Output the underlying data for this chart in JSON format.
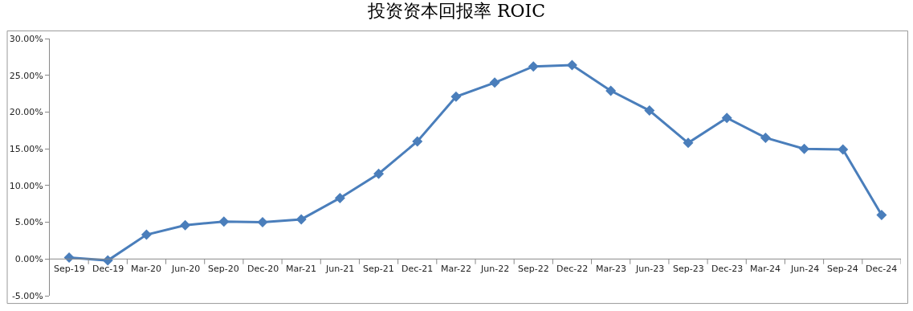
{
  "chart_data": {
    "type": "line",
    "title": "投资资本回报率 ROIC",
    "categories": [
      "Sep-19",
      "Dec-19",
      "Mar-20",
      "Jun-20",
      "Sep-20",
      "Dec-20",
      "Mar-21",
      "Jun-21",
      "Sep-21",
      "Dec-21",
      "Mar-22",
      "Jun-22",
      "Sep-22",
      "Dec-22",
      "Mar-23",
      "Jun-23",
      "Sep-23",
      "Dec-23",
      "Mar-24",
      "Jun-24",
      "Sep-24",
      "Dec-24"
    ],
    "series": [
      {
        "color": "#4a7ebb",
        "values": [
          0.2,
          -0.2,
          3.3,
          4.6,
          5.1,
          5.0,
          5.4,
          8.3,
          11.6,
          16.0,
          22.1,
          24.0,
          26.2,
          26.4,
          22.9,
          20.2,
          15.8,
          19.2,
          16.5,
          15.0,
          14.9,
          6.0
        ]
      }
    ],
    "ylim": [
      -5,
      30
    ],
    "yticks": [
      {
        "value": -5,
        "label": "-5.00%"
      },
      {
        "value": 0,
        "label": "0.00%"
      },
      {
        "value": 5,
        "label": "5.00%"
      },
      {
        "value": 10,
        "label": "10.00%"
      },
      {
        "value": 15,
        "label": "15.00%"
      },
      {
        "value": 20,
        "label": "20.00%"
      },
      {
        "value": 25,
        "label": "25.00%"
      },
      {
        "value": 30,
        "label": "30.00%"
      }
    ],
    "legend": false,
    "marker": "diamond",
    "line_style": "solid"
  }
}
